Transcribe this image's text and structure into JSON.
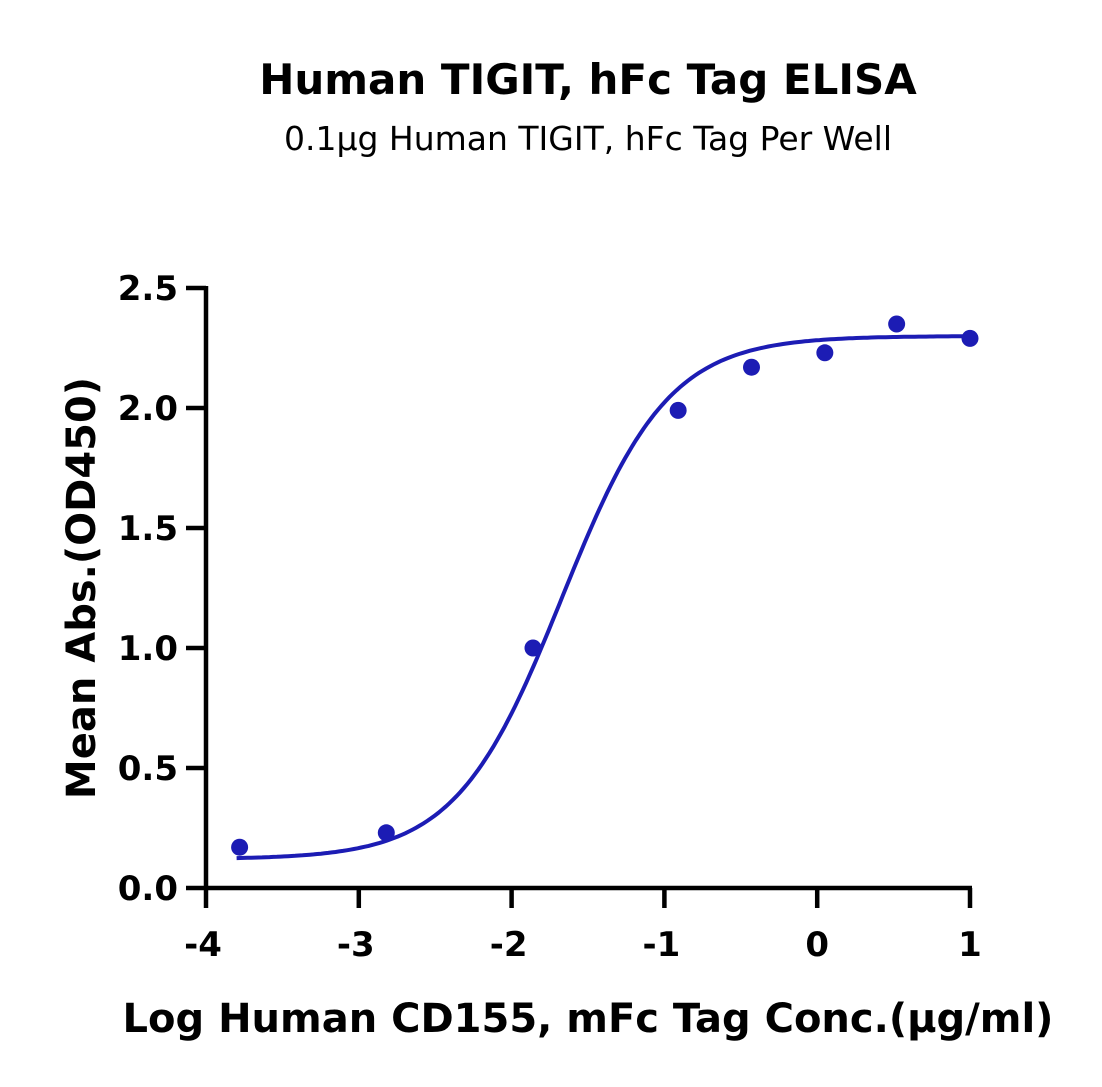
{
  "chart_data": {
    "type": "scatter",
    "title": "Human TIGIT, hFc Tag ELISA",
    "subtitle": "0.1μg Human TIGIT, hFc Tag Per Well",
    "xlabel": "Log Human CD155, mFc Tag Conc.(μg/ml)",
    "ylabel": "Mean Abs.(OD450)",
    "xlim": [
      -4,
      1
    ],
    "ylim": [
      0,
      2.5
    ],
    "x_ticks": [
      -4,
      -3,
      -2,
      -1,
      0,
      1
    ],
    "x_tick_labels": [
      "-4",
      "-3",
      "-2",
      "-1",
      "0",
      "1"
    ],
    "y_ticks": [
      0,
      0.5,
      1.0,
      1.5,
      2.0,
      2.5
    ],
    "y_tick_labels": [
      "0.0",
      "0.5",
      "1.0",
      "1.5",
      "2.0",
      "2.5"
    ],
    "grid": false,
    "series": [
      {
        "points": [
          {
            "x": -3.78,
            "y": 0.17
          },
          {
            "x": -2.82,
            "y": 0.23
          },
          {
            "x": -1.86,
            "y": 1.0
          },
          {
            "x": -0.91,
            "y": 1.99
          },
          {
            "x": -0.43,
            "y": 2.17
          },
          {
            "x": 0.05,
            "y": 2.23
          },
          {
            "x": 0.52,
            "y": 2.35
          },
          {
            "x": 1.0,
            "y": 2.29
          }
        ],
        "fit": {
          "model": "4PL",
          "bottom": 0.12,
          "top": 2.3,
          "logEC50": -1.67,
          "hill": 1.25,
          "x_range": [
            -3.8,
            1.0
          ]
        },
        "color": "#1c1cb4"
      }
    ]
  }
}
